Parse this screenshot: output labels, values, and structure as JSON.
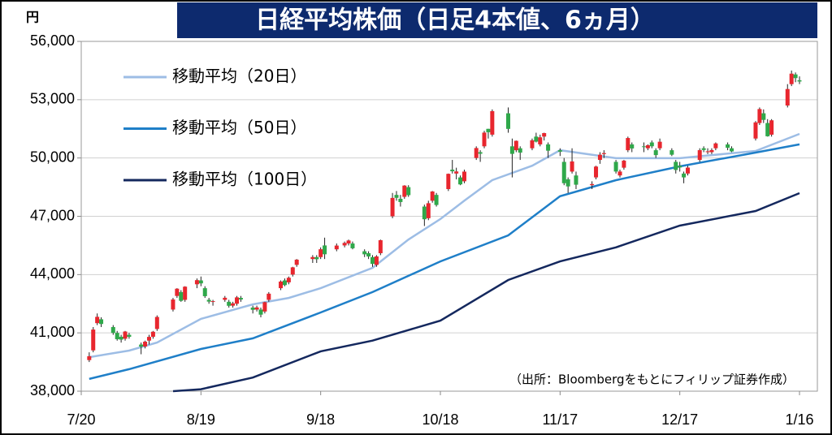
{
  "chart_data": {
    "type": "candlestick",
    "title": "日経平均株価（日足4本値、6ヵ月）",
    "y_unit": "円",
    "source": "（出所：Bloombergをもとにフィリップ証券作成）",
    "up_color": "#e8262e",
    "down_color": "#2fa84a",
    "ylim": [
      38000,
      56000
    ],
    "yticks": [
      {
        "value": 38000,
        "label": "38,000"
      },
      {
        "value": 41000,
        "label": "41,000"
      },
      {
        "value": 44000,
        "label": "44,000"
      },
      {
        "value": 47000,
        "label": "47,000"
      },
      {
        "value": 50000,
        "label": "50,000"
      },
      {
        "value": 53000,
        "label": "53,000"
      },
      {
        "value": 56000,
        "label": "56,000"
      }
    ],
    "xticks": [
      "7/20",
      "8/19",
      "9/18",
      "10/18",
      "11/17",
      "12/17",
      "1/16"
    ],
    "grid": true,
    "legend": "top-left",
    "x": [
      "7/22",
      "7/23",
      "7/24",
      "7/25",
      "7/28",
      "7/29",
      "7/30",
      "7/31",
      "8/1",
      "8/4",
      "8/5",
      "8/6",
      "8/7",
      "8/8",
      "8/12",
      "8/13",
      "8/14",
      "8/15",
      "8/18",
      "8/19",
      "8/20",
      "8/21",
      "8/22",
      "8/25",
      "8/26",
      "8/27",
      "8/28",
      "8/29",
      "9/1",
      "9/2",
      "9/3",
      "9/4",
      "9/5",
      "9/8",
      "9/9",
      "9/10",
      "9/11",
      "9/12",
      "9/16",
      "9/17",
      "9/18",
      "9/19",
      "9/22",
      "9/24",
      "9/25",
      "9/26",
      "9/29",
      "9/30",
      "10/1",
      "10/2",
      "10/3",
      "10/6",
      "10/7",
      "10/8",
      "10/9",
      "10/10",
      "10/14",
      "10/15",
      "10/16",
      "10/17",
      "10/20",
      "10/21",
      "10/22",
      "10/23",
      "10/24",
      "10/27",
      "10/28",
      "10/29",
      "10/30",
      "10/31",
      "11/4",
      "11/5",
      "11/6",
      "11/7",
      "11/10",
      "11/11",
      "11/12",
      "11/13",
      "11/14",
      "11/17",
      "11/18",
      "11/19",
      "11/20",
      "11/21",
      "11/25",
      "11/26",
      "11/27",
      "11/28",
      "12/1",
      "12/2",
      "12/3",
      "12/4",
      "12/5",
      "12/8",
      "12/9",
      "12/10",
      "12/11",
      "12/12",
      "12/15",
      "12/16",
      "12/17",
      "12/18",
      "12/19",
      "12/22",
      "12/23",
      "12/24",
      "12/25",
      "12/26",
      "12/29",
      "12/30",
      "1/5",
      "1/6",
      "1/7",
      "1/8",
      "1/9",
      "1/13",
      "1/14",
      "1/15",
      "1/16"
    ],
    "open": [
      39600,
      40100,
      41500,
      41700,
      41300,
      41000,
      40800,
      40700,
      40900,
      40400,
      40300,
      40600,
      40800,
      41200,
      42200,
      42900,
      43100,
      42700,
      43500,
      43700,
      43300,
      42700,
      42600,
      42700,
      42600,
      42400,
      42500,
      42800,
      42300,
      42200,
      42200,
      42100,
      42700,
      43300,
      43700,
      43600,
      44000,
      44500,
      44800,
      44900,
      44900,
      45500,
      45300,
      45500,
      45600,
      45600,
      45200,
      45100,
      44900,
      44500,
      45100,
      47000,
      48100,
      47900,
      48000,
      48500,
      47500,
      46900,
      47800,
      48100,
      48400,
      49400,
      49200,
      49000,
      48800,
      50000,
      50300,
      50600,
      51500,
      51200,
      52300,
      50600,
      50400,
      50500,
      50500,
      51100,
      50700,
      51100,
      50700,
      50400,
      49800,
      48900,
      49300,
      49100,
      48600,
      49000,
      49900,
      50200,
      49800,
      49100,
      49500,
      50400,
      50700,
      50600,
      50500,
      50800,
      50400,
      50500,
      50400,
      49800,
      49600,
      49200,
      49200,
      49900,
      50500,
      50300,
      50300,
      50500,
      50700,
      50500,
      51000,
      51800,
      52300,
      51800,
      51200,
      52700,
      53800,
      54300,
      54000
    ],
    "high": [
      40000,
      41300,
      42000,
      41800,
      41400,
      41100,
      40900,
      41100,
      41000,
      40500,
      40600,
      40900,
      41100,
      41900,
      42800,
      43300,
      43200,
      43400,
      43800,
      43900,
      43400,
      42800,
      42700,
      42900,
      42700,
      42600,
      42900,
      42900,
      42400,
      42400,
      42300,
      42600,
      43100,
      43700,
      43800,
      43900,
      44400,
      44800,
      45000,
      45000,
      45400,
      45900,
      45600,
      45700,
      45800,
      45700,
      45300,
      45200,
      45000,
      45000,
      45800,
      48200,
      48300,
      48100,
      48600,
      48600,
      47600,
      47800,
      48300,
      48200,
      49200,
      49900,
      49500,
      49100,
      49400,
      50600,
      50400,
      51400,
      51500,
      52500,
      52600,
      51000,
      50900,
      50600,
      51000,
      51300,
      51200,
      51300,
      50800,
      50500,
      50000,
      49000,
      50500,
      49300,
      48800,
      49600,
      50300,
      50400,
      49900,
      49400,
      49900,
      51100,
      50800,
      50800,
      50700,
      50900,
      50500,
      51000,
      50500,
      49900,
      49800,
      49300,
      49600,
      50500,
      50600,
      50500,
      50500,
      50800,
      50800,
      50600,
      51900,
      52600,
      52500,
      52000,
      52000,
      53800,
      54500,
      54400,
      54200
    ],
    "low": [
      39500,
      40000,
      41400,
      41300,
      40900,
      40600,
      40500,
      40600,
      40700,
      39900,
      40200,
      40400,
      40700,
      41100,
      42100,
      42800,
      42600,
      42600,
      43300,
      43400,
      42800,
      42500,
      42400,
      42600,
      42300,
      42300,
      42400,
      42600,
      42000,
      42100,
      41800,
      42000,
      42600,
      43200,
      43400,
      43500,
      43900,
      44400,
      44600,
      44600,
      44800,
      44800,
      45200,
      45400,
      45500,
      45300,
      44900,
      44800,
      44400,
      44400,
      45000,
      46900,
      47800,
      47500,
      47900,
      48000,
      46500,
      46800,
      47700,
      47500,
      48300,
      49200,
      48900,
      48600,
      48700,
      49900,
      49800,
      50500,
      51000,
      51100,
      51300,
      49000,
      50300,
      49900,
      50400,
      50800,
      50600,
      50900,
      50000,
      50100,
      48600,
      48200,
      49200,
      48400,
      48400,
      48900,
      49700,
      50000,
      49200,
      49000,
      49400,
      50300,
      50300,
      50300,
      50400,
      50500,
      50000,
      50400,
      50100,
      49200,
      49300,
      48700,
      49100,
      49800,
      50300,
      50200,
      50200,
      50400,
      50400,
      50300,
      50900,
      51700,
      51800,
      51100,
      51100,
      52600,
      53700,
      53900,
      53800
    ],
    "close": [
      39800,
      41171,
      41826,
      41456,
      40998,
      40674,
      40654,
      41069,
      40799,
      40290,
      40549,
      40794,
      41059,
      41820,
      42718,
      43274,
      42649,
      43378,
      43714,
      43546,
      42888,
      42610,
      42633,
      42807,
      42394,
      42520,
      42828,
      42718,
      42188,
      42310,
      41938,
      42580,
      43018,
      43643,
      43459,
      43837,
      44372,
      44768,
      44902,
      44790,
      45303,
      45045,
      45493,
      45630,
      45754,
      45354,
      45043,
      44932,
      44550,
      44936,
      45769,
      47944,
      47950,
      47734,
      48580,
      48088,
      46847,
      47672,
      48277,
      47582,
      49185,
      49316,
      49307,
      48641,
      49299,
      50512,
      50219,
      51307,
      51325,
      52411,
      51497,
      50212,
      50883,
      50276,
      50911,
      50842,
      51063,
      51281,
      50376,
      50323,
      48702,
      48537,
      49823,
      48625,
      48659,
      49559,
      50167,
      50253,
      49303,
      49303,
      49864,
      51028,
      50491,
      50581,
      50655,
      50602,
      50148,
      50836,
      50168,
      49383,
      49512,
      49001,
      49507,
      50402,
      50412,
      50344,
      50407,
      50750,
      50526,
      50339,
      51832,
      52518,
      51961,
      51117,
      51939,
      53549,
      54341,
      54110,
      53936
    ],
    "series": [
      {
        "name": "移動平均（20日）",
        "color": "#9dbde5",
        "x": [
          "7/22",
          "8/1",
          "8/8",
          "8/19",
          "9/1",
          "9/10",
          "9/18",
          "10/1",
          "10/10",
          "10/18",
          "10/24",
          "10/31",
          "11/10",
          "11/17",
          "12/1",
          "12/17",
          "1/5",
          "1/16"
        ],
        "values": [
          39750,
          40090,
          40500,
          41720,
          42470,
          42800,
          43300,
          44350,
          45800,
          46860,
          47800,
          48860,
          49600,
          50400,
          49990,
          49990,
          50360,
          51240
        ]
      },
      {
        "name": "移動平均（50日）",
        "color": "#1f7fc8",
        "x": [
          "7/22",
          "8/1",
          "8/19",
          "9/1",
          "9/18",
          "10/1",
          "10/18",
          "11/4",
          "11/17",
          "12/1",
          "12/17",
          "1/5",
          "1/16"
        ],
        "values": [
          38630,
          39130,
          40170,
          40720,
          42050,
          43100,
          44680,
          46020,
          48030,
          48860,
          49570,
          50280,
          50700
        ]
      },
      {
        "name": "移動平均（100日）",
        "color": "#14285e",
        "x": [
          "8/12",
          "8/19",
          "9/1",
          "9/18",
          "10/1",
          "10/18",
          "11/4",
          "11/17",
          "12/1",
          "12/17",
          "1/5",
          "1/16"
        ],
        "values": [
          38000,
          38100,
          38700,
          40050,
          40600,
          41630,
          43720,
          44680,
          45400,
          46520,
          47270,
          48190
        ]
      }
    ]
  }
}
